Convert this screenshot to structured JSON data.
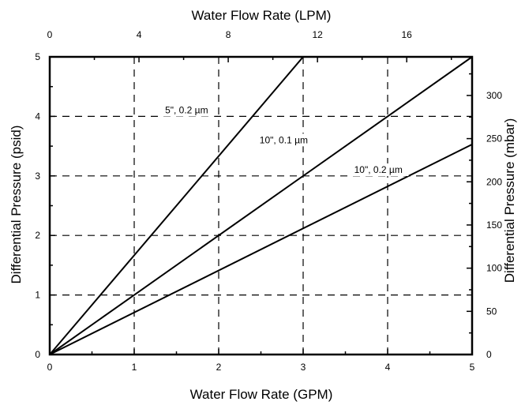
{
  "chart_data": {
    "type": "line",
    "title": "",
    "xlabel": "Water Flow Rate (GPM)",
    "ylabel": "Differential Pressure (psid)",
    "x2label": "Water Flow Rate (LPM)",
    "y2label": "Differential Pressure (mbar)",
    "xlim": [
      0,
      5
    ],
    "ylim": [
      0,
      5
    ],
    "x2lim": [
      0,
      18.93
    ],
    "y2lim": [
      0,
      344.7
    ],
    "x_ticks": [
      0,
      1,
      2,
      3,
      4,
      5
    ],
    "y_ticks": [
      0,
      1,
      2,
      3,
      4,
      5
    ],
    "x2_ticks": [
      0,
      4,
      8,
      12,
      16
    ],
    "y2_ticks": [
      0,
      50,
      100,
      150,
      200,
      250,
      300
    ],
    "grid": "dashed",
    "series": [
      {
        "name": "5\", 0.2 µm",
        "x": [
          0,
          3.0
        ],
        "y": [
          0,
          5.0
        ]
      },
      {
        "name": "10\", 0.1 µm",
        "x": [
          0,
          5.0
        ],
        "y": [
          0,
          5.0
        ]
      },
      {
        "name": "10\", 0.2 µm",
        "x": [
          0,
          5.0
        ],
        "y": [
          0,
          3.53
        ]
      }
    ]
  }
}
